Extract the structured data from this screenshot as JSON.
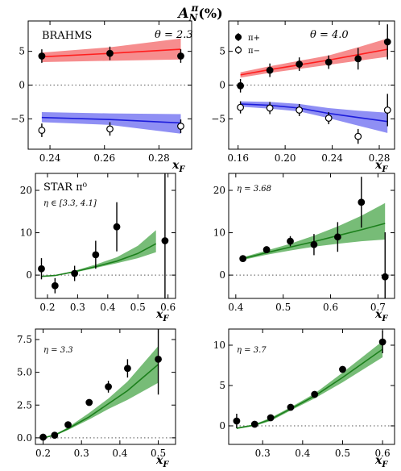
{
  "figure": {
    "title": {
      "base": "A",
      "sub": "N",
      "sup": "π",
      "unit": "(%)"
    },
    "xlabel": {
      "base": "x",
      "sub": "F"
    }
  },
  "colors": {
    "red": "#ff1e1e",
    "red_band": "#f4797a",
    "blue": "#1d1ddb",
    "blue_band": "#7b7bf2",
    "green": "#1c801c",
    "green_band": "#5fb05f"
  },
  "chart_data": [
    {
      "id": "brahms-theta-2.3",
      "type": "scatter",
      "xlim": [
        0.232,
        0.292
      ],
      "ylim": [
        -9.5,
        9.5
      ],
      "xticks": [
        0.24,
        0.26,
        0.28
      ],
      "xtick_labels": [
        "0.24",
        "0.26",
        "0.28"
      ],
      "yticks": [
        -5,
        0,
        5
      ],
      "ytick_labels": [
        "−5",
        "0",
        "5"
      ],
      "annotations": [
        {
          "id": "experiment",
          "text": "BRAHMS"
        },
        {
          "id": "angle",
          "text": "θ = 2.3"
        }
      ],
      "series": [
        {
          "name": "π+",
          "marker": "filled",
          "x": [
            0.237,
            0.262,
            0.288
          ],
          "y": [
            4.3,
            4.7,
            4.3
          ],
          "err": [
            1.0,
            1.0,
            1.0
          ]
        },
        {
          "name": "π−",
          "marker": "open",
          "x": [
            0.237,
            0.262,
            0.288
          ],
          "y": [
            -6.7,
            -6.5,
            -6.1
          ],
          "err": [
            1.0,
            1.0,
            1.0
          ]
        }
      ],
      "curves": [
        {
          "color": "red",
          "x": [
            0.237,
            0.262,
            0.288
          ],
          "y": [
            4.2,
            4.7,
            5.3
          ],
          "lo": [
            3.4,
            3.6,
            3.8
          ],
          "hi": [
            4.8,
            5.6,
            6.9
          ]
        },
        {
          "color": "blue",
          "x": [
            0.237,
            0.262,
            0.288
          ],
          "y": [
            -4.8,
            -5.1,
            -5.6
          ],
          "lo": [
            -5.5,
            -5.9,
            -7.2
          ],
          "hi": [
            -4.0,
            -4.2,
            -4.3
          ]
        }
      ]
    },
    {
      "id": "brahms-theta-4.0",
      "type": "scatter",
      "xlim": [
        0.152,
        0.293
      ],
      "ylim": [
        -9.5,
        9.5
      ],
      "xticks": [
        0.16,
        0.2,
        0.24,
        0.28
      ],
      "xtick_labels": [
        "0.16",
        "0.20",
        "0.24",
        "0.28"
      ],
      "yticks": [
        -5,
        0,
        5
      ],
      "ytick_labels": [
        "−5",
        "0",
        "5"
      ],
      "annotations": [
        {
          "id": "angle",
          "text": "θ = 4.0"
        }
      ],
      "legend": {
        "placement": "top-left",
        "entries": [
          {
            "marker": "filled",
            "label": "π+"
          },
          {
            "marker": "open",
            "label": "π−"
          }
        ]
      },
      "series": [
        {
          "name": "π+",
          "marker": "filled",
          "x": [
            0.162,
            0.187,
            0.212,
            0.237,
            0.262,
            0.287
          ],
          "y": [
            -0.1,
            2.2,
            3.1,
            3.4,
            3.9,
            6.4
          ],
          "err": [
            1.0,
            1.0,
            1.0,
            1.0,
            1.6,
            2.6
          ]
        },
        {
          "name": "π−",
          "marker": "open",
          "x": [
            0.162,
            0.187,
            0.212,
            0.237,
            0.262,
            0.287
          ],
          "y": [
            -3.3,
            -3.4,
            -3.7,
            -4.9,
            -7.6,
            -3.7
          ],
          "err": [
            0.9,
            0.9,
            0.9,
            0.9,
            1.1,
            2.4
          ]
        }
      ],
      "curves": [
        {
          "color": "red",
          "x": [
            0.162,
            0.187,
            0.212,
            0.237,
            0.262,
            0.287
          ],
          "y": [
            1.5,
            2.3,
            3.0,
            3.7,
            4.5,
            5.3
          ],
          "lo": [
            1.1,
            1.8,
            2.4,
            3.0,
            3.6,
            4.2
          ],
          "hi": [
            1.9,
            2.8,
            3.6,
            4.4,
            5.6,
            6.9
          ]
        },
        {
          "color": "blue",
          "x": [
            0.162,
            0.187,
            0.212,
            0.237,
            0.262,
            0.287
          ],
          "y": [
            -2.8,
            -3.0,
            -3.4,
            -4.2,
            -4.8,
            -5.4
          ],
          "lo": [
            -3.2,
            -3.5,
            -3.9,
            -4.9,
            -6.0,
            -7.1
          ],
          "hi": [
            -2.4,
            -2.5,
            -2.8,
            -3.4,
            -3.8,
            -4.1
          ]
        }
      ]
    },
    {
      "id": "star-eta-3.3-4.1",
      "type": "scatter",
      "xlim": [
        0.16,
        0.625
      ],
      "ylim": [
        -5.5,
        24
      ],
      "xticks": [
        0.2,
        0.3,
        0.4,
        0.5,
        0.6
      ],
      "xtick_labels": [
        "0.2",
        "0.3",
        "0.4",
        "0.5",
        "0.6"
      ],
      "yticks": [
        0,
        10,
        20
      ],
      "ytick_labels": [
        "0",
        "10",
        "20"
      ],
      "annotations": [
        {
          "id": "experiment",
          "text": "STAR π⁰"
        },
        {
          "id": "range",
          "text": "η ∈ [3.3, 4.1]"
        }
      ],
      "series": [
        {
          "name": "π0",
          "marker": "filled",
          "x": [
            0.18,
            0.225,
            0.29,
            0.36,
            0.43,
            0.59
          ],
          "y": [
            1.5,
            -2.5,
            0.4,
            4.8,
            11.4,
            8.1
          ],
          "err": [
            2.5,
            1.8,
            1.8,
            3.3,
            5.8,
            17
          ]
        }
      ],
      "curves": [
        {
          "color": "green",
          "x": [
            0.18,
            0.225,
            0.29,
            0.36,
            0.43,
            0.5,
            0.56
          ],
          "y": [
            -0.3,
            -0.1,
            0.8,
            2.0,
            3.3,
            5.1,
            7.4
          ],
          "lo": [
            -0.4,
            -0.2,
            0.6,
            1.7,
            2.8,
            4.0,
            5.4
          ],
          "hi": [
            -0.2,
            0.0,
            1.0,
            2.5,
            4.2,
            6.9,
            10.6
          ]
        }
      ]
    },
    {
      "id": "star-eta-3.68",
      "type": "scatter",
      "xlim": [
        0.385,
        0.735
      ],
      "ylim": [
        -5.5,
        24
      ],
      "xticks": [
        0.4,
        0.5,
        0.6,
        0.7
      ],
      "xtick_labels": [
        "0.4",
        "0.5",
        "0.6",
        "0.7"
      ],
      "yticks": [
        0,
        10,
        20
      ],
      "ytick_labels": [
        "0",
        "10",
        "20"
      ],
      "annotations": [
        {
          "id": "eta",
          "text": "η = 3.68"
        }
      ],
      "series": [
        {
          "name": "π0",
          "marker": "filled",
          "x": [
            0.415,
            0.465,
            0.515,
            0.565,
            0.615,
            0.665,
            0.715
          ],
          "y": [
            3.9,
            6.0,
            8.0,
            7.2,
            9.0,
            17.2,
            -0.4
          ],
          "err": [
            0.5,
            0.7,
            1.2,
            2.5,
            3.5,
            6.0,
            10.5
          ]
        }
      ],
      "curves": [
        {
          "color": "green",
          "x": [
            0.415,
            0.465,
            0.515,
            0.565,
            0.615,
            0.665,
            0.715
          ],
          "y": [
            3.9,
            5.3,
            6.6,
            7.9,
            9.3,
            10.7,
            12.2
          ],
          "lo": [
            3.6,
            4.8,
            5.8,
            6.7,
            7.4,
            8.0,
            8.4
          ],
          "hi": [
            4.2,
            5.8,
            7.4,
            9.3,
            11.5,
            14.0,
            17.0
          ]
        }
      ]
    },
    {
      "id": "star-eta-3.3",
      "type": "scatter",
      "xlim": [
        0.18,
        0.545
      ],
      "ylim": [
        -0.5,
        8.3
      ],
      "xticks": [
        0.2,
        0.3,
        0.4,
        0.5
      ],
      "xtick_labels": [
        "0.2",
        "0.3",
        "0.4",
        "0.5"
      ],
      "yticks": [
        0.0,
        2.5,
        5.0,
        7.5
      ],
      "ytick_labels": [
        "0.0",
        "2.5",
        "5.0",
        "7.5"
      ],
      "annotations": [
        {
          "id": "eta",
          "text": "η = 3.3"
        }
      ],
      "series": [
        {
          "name": "π0",
          "marker": "filled",
          "x": [
            0.2,
            0.23,
            0.265,
            0.32,
            0.37,
            0.42,
            0.5
          ],
          "y": [
            0.05,
            0.2,
            1.0,
            2.7,
            3.9,
            5.3,
            6.0
          ],
          "err": [
            0.1,
            0.15,
            0.2,
            0.25,
            0.45,
            0.7,
            2.7
          ]
        }
      ],
      "curves": [
        {
          "color": "green",
          "x": [
            0.2,
            0.23,
            0.265,
            0.32,
            0.37,
            0.42,
            0.5
          ],
          "y": [
            0.0,
            0.2,
            0.7,
            1.6,
            2.6,
            3.6,
            5.6
          ],
          "lo": [
            0.0,
            0.15,
            0.6,
            1.4,
            2.2,
            2.9,
            4.2
          ],
          "hi": [
            0.05,
            0.25,
            0.8,
            1.9,
            3.0,
            4.3,
            7.0
          ]
        }
      ]
    },
    {
      "id": "star-eta-3.7",
      "type": "scatter",
      "xlim": [
        0.215,
        0.63
      ],
      "ylim": [
        -2.3,
        12
      ],
      "xticks": [
        0.3,
        0.4,
        0.5,
        0.6
      ],
      "xtick_labels": [
        "0.3",
        "0.4",
        "0.5",
        "0.6"
      ],
      "yticks": [
        0,
        5,
        10
      ],
      "ytick_labels": [
        "0",
        "5",
        "10"
      ],
      "annotations": [
        {
          "id": "eta",
          "text": "η = 3.7"
        }
      ],
      "series": [
        {
          "name": "π0",
          "marker": "filled",
          "x": [
            0.235,
            0.28,
            0.32,
            0.37,
            0.43,
            0.5,
            0.6
          ],
          "y": [
            0.6,
            0.2,
            1.0,
            2.3,
            3.9,
            7.0,
            10.4
          ],
          "err": [
            0.9,
            0.2,
            0.2,
            0.3,
            0.3,
            0.4,
            1.4
          ]
        }
      ],
      "curves": [
        {
          "color": "green",
          "x": [
            0.235,
            0.28,
            0.32,
            0.37,
            0.43,
            0.5,
            0.6
          ],
          "y": [
            -0.3,
            0.1,
            0.8,
            2.1,
            3.7,
            6.0,
            9.5
          ],
          "lo": [
            -0.4,
            0.0,
            0.6,
            1.9,
            3.4,
            5.4,
            8.5
          ],
          "hi": [
            -0.2,
            0.2,
            1.0,
            2.3,
            4.0,
            6.6,
            10.5
          ]
        }
      ]
    }
  ]
}
